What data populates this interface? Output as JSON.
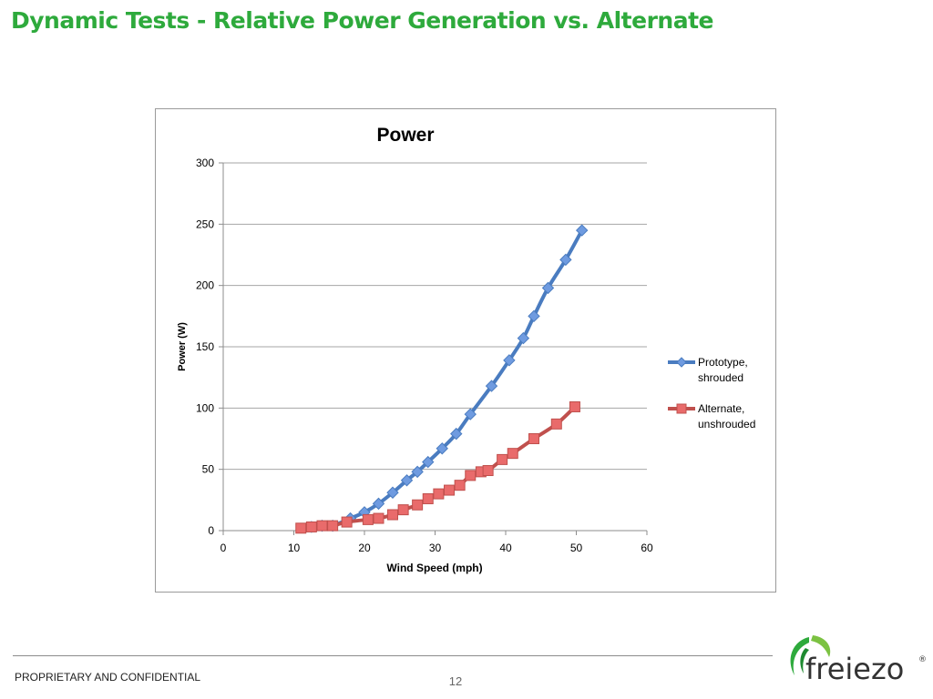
{
  "slide": {
    "title": "Dynamic Tests -   Relative Power Generation vs. Alternate",
    "footer": "PROPRIETARY AND CONFIDENTIAL",
    "page_number": "12",
    "logo_text": "freiezo",
    "logo_reg": "®"
  },
  "colors": {
    "title_green": "#2eaa3c",
    "prototype": "#4a7cc0",
    "prototype_marker": "#6f9be0",
    "alternate": "#c0504d",
    "alternate_marker": "#e96b6b",
    "grid": "#a6a6a6"
  },
  "chart_data": {
    "type": "line",
    "title": "Power",
    "xlabel": "Wind Speed (mph)",
    "ylabel": "Power (W)",
    "xlim": [
      0,
      60
    ],
    "ylim": [
      0,
      300
    ],
    "xticks": [
      0,
      10,
      20,
      30,
      40,
      50,
      60
    ],
    "yticks": [
      0,
      50,
      100,
      150,
      200,
      250,
      300
    ],
    "grid": "horizontal",
    "legend_position": "right",
    "series": [
      {
        "name": "Prototype, shrouded",
        "legend_lines": [
          "Prototype,",
          "shrouded"
        ],
        "marker": "diamond",
        "color": "#4a7cc0",
        "points": [
          [
            12.5,
            3
          ],
          [
            14,
            4
          ],
          [
            15.5,
            4
          ],
          [
            18,
            10
          ],
          [
            20,
            15
          ],
          [
            22,
            22
          ],
          [
            24,
            31
          ],
          [
            26,
            41
          ],
          [
            27.5,
            48
          ],
          [
            29,
            56
          ],
          [
            31,
            67
          ],
          [
            33,
            79
          ],
          [
            35,
            95
          ],
          [
            38,
            118
          ],
          [
            40.5,
            139
          ],
          [
            42.5,
            157
          ],
          [
            44,
            175
          ],
          [
            46,
            198
          ],
          [
            48.5,
            221
          ],
          [
            50.8,
            245
          ]
        ]
      },
      {
        "name": "Alternate, unshrouded",
        "legend_lines": [
          "Alternate,",
          "unshrouded"
        ],
        "marker": "square",
        "color": "#c0504d",
        "points": [
          [
            11,
            2
          ],
          [
            12.5,
            3
          ],
          [
            14,
            4
          ],
          [
            15.5,
            4
          ],
          [
            17.5,
            7
          ],
          [
            20.5,
            9
          ],
          [
            22,
            10
          ],
          [
            24,
            13
          ],
          [
            25.5,
            17
          ],
          [
            27.5,
            21
          ],
          [
            29,
            26
          ],
          [
            30.5,
            30
          ],
          [
            32,
            33
          ],
          [
            33.5,
            37
          ],
          [
            35,
            45
          ],
          [
            36.5,
            48
          ],
          [
            37.5,
            49
          ],
          [
            39.5,
            58
          ],
          [
            41,
            63
          ],
          [
            44,
            75
          ],
          [
            47.2,
            87
          ],
          [
            49.8,
            101
          ]
        ]
      }
    ]
  }
}
